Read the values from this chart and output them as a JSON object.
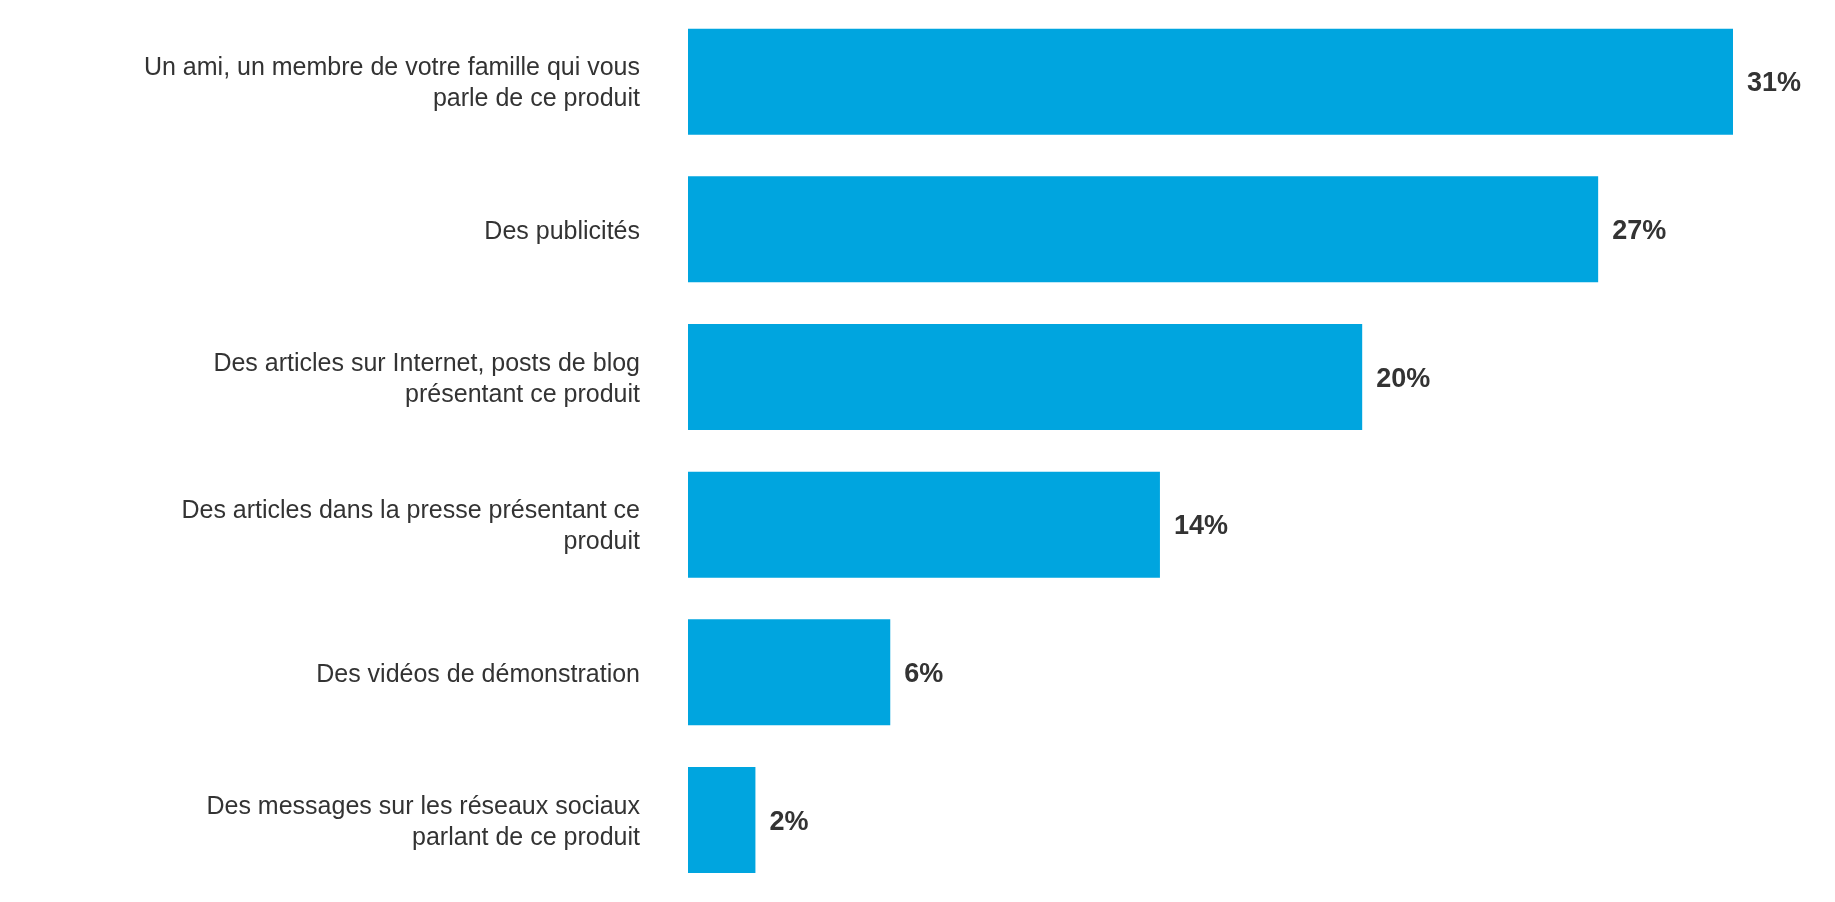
{
  "chart_data": {
    "type": "bar",
    "orientation": "horizontal",
    "categories": [
      "Un ami, un membre de votre famille qui vous parle de ce produit",
      "Des publicités",
      "Des articles sur Internet, posts de blog présentant ce produit",
      "Des articles dans la presse présentant ce produit",
      "Des vidéos de démonstration",
      "Des messages sur les réseaux sociaux parlant de ce produit"
    ],
    "values": [
      31,
      27,
      20,
      14,
      6,
      2
    ],
    "value_labels": [
      "31%",
      "27%",
      "20%",
      "14%",
      "6%",
      "2%"
    ],
    "color": "#00a5df",
    "grid": false,
    "legend": false
  }
}
